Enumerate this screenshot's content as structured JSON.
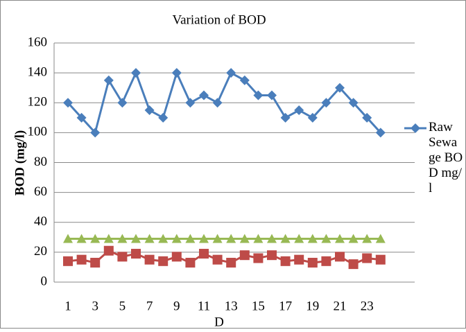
{
  "chart_data": {
    "type": "line",
    "title": "Variation of BOD",
    "x_label": "D",
    "y_label": "BOD (mg/l)",
    "categories": [
      "1",
      null,
      "3",
      null,
      "5",
      null,
      "7",
      null,
      "9",
      null,
      "11",
      null,
      "13",
      null,
      "15",
      null,
      "17",
      null,
      "19",
      null,
      "21",
      null,
      "23",
      null
    ],
    "series": [
      {
        "name": "Raw Sewage BOD mg/l",
        "color": "#4a7ebb",
        "marker": "diamond",
        "values": [
          120,
          110,
          100,
          135,
          120,
          140,
          115,
          110,
          140,
          120,
          125,
          120,
          140,
          135,
          125,
          125,
          110,
          115,
          110,
          120,
          130,
          120,
          110,
          100
        ]
      },
      {
        "color": "#be4b48",
        "marker": "square",
        "values": [
          14,
          15,
          13,
          21,
          17,
          19,
          15,
          14,
          17,
          13,
          19,
          15,
          13,
          18,
          16,
          18,
          14,
          15,
          13,
          14,
          17,
          12,
          16,
          15
        ]
      },
      {
        "color": "#98b954",
        "marker": "triangle",
        "values": [
          29,
          29,
          29,
          29,
          29,
          29,
          29,
          29,
          29,
          29,
          29,
          29,
          29,
          29,
          29,
          29,
          29,
          29,
          29,
          29,
          29,
          29,
          29,
          29
        ]
      }
    ],
    "ylim": [
      0,
      160
    ],
    "yticks": [
      0,
      20,
      40,
      60,
      80,
      100,
      120,
      140,
      160
    ],
    "grid": true
  }
}
